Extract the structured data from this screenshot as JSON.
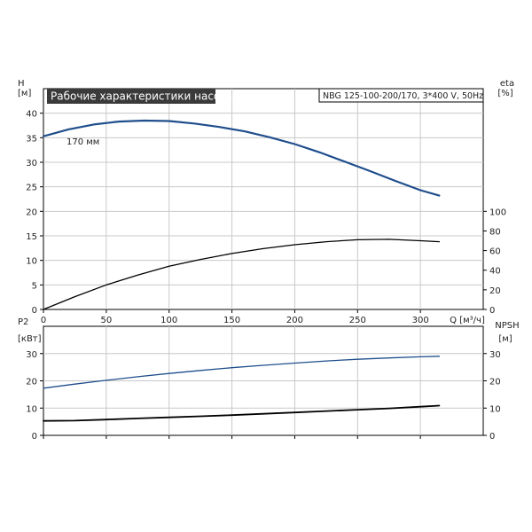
{
  "chart_data": [
    {
      "type": "line",
      "title": "Рабочие характеристики насоса",
      "subtitle": "NBG 125-100-200/170, 3*400 V, 50Hz",
      "x_axis": {
        "label": "Q [м³/ч]",
        "range": [
          0,
          350
        ],
        "ticks": [
          0,
          50,
          100,
          150,
          200,
          250,
          300
        ]
      },
      "y_left_axis": {
        "label": "H",
        "unit": "[м]",
        "range": [
          0,
          45
        ],
        "ticks": [
          0,
          5,
          10,
          15,
          20,
          25,
          30,
          35,
          40
        ]
      },
      "y_right_axis": {
        "label": "eta",
        "unit": "[%]",
        "range": [
          0,
          225
        ],
        "ticks": [
          0,
          20,
          40,
          60,
          80,
          100
        ]
      },
      "grid": true,
      "series": [
        {
          "name": "170 мм",
          "axis": "left",
          "color": "#1f4e8c",
          "x": [
            0,
            20,
            40,
            60,
            80,
            100,
            120,
            140,
            160,
            180,
            200,
            220,
            240,
            260,
            280,
            300,
            315
          ],
          "values": [
            35.3,
            36.7,
            37.7,
            38.3,
            38.5,
            38.4,
            37.9,
            37.2,
            36.3,
            35.1,
            33.7,
            32.0,
            30.1,
            28.2,
            26.2,
            24.3,
            23.2
          ]
        },
        {
          "name": "eta",
          "axis": "right",
          "color": "#000000",
          "x": [
            0,
            25,
            50,
            75,
            100,
            125,
            150,
            175,
            200,
            225,
            250,
            275,
            300,
            315
          ],
          "values": [
            0,
            13,
            25,
            35,
            44,
            51,
            57,
            62,
            66,
            69,
            71,
            71.5,
            70,
            69
          ]
        }
      ]
    },
    {
      "type": "line",
      "x_axis": {
        "range": [
          0,
          350
        ],
        "ticks": [
          0,
          50,
          100,
          150,
          200,
          250,
          300
        ]
      },
      "y_left_axis": {
        "label": "P2",
        "unit": "[кВт]",
        "range": [
          0,
          40
        ],
        "ticks": [
          0,
          10,
          20,
          30
        ]
      },
      "y_right_axis": {
        "label": "NPSH",
        "unit": "[м]",
        "range": [
          0,
          40
        ],
        "ticks": [
          0,
          10,
          20,
          30
        ]
      },
      "grid": true,
      "series": [
        {
          "name": "P2",
          "axis": "left",
          "color": "#1f4e8c",
          "x": [
            0,
            25,
            50,
            75,
            100,
            125,
            150,
            175,
            200,
            225,
            250,
            275,
            300,
            315
          ],
          "values": [
            17.3,
            18.8,
            20.2,
            21.5,
            22.7,
            23.8,
            24.8,
            25.7,
            26.5,
            27.3,
            27.9,
            28.4,
            28.8,
            29.0
          ]
        },
        {
          "name": "NPSH",
          "axis": "right",
          "color": "#000000",
          "x": [
            0,
            25,
            50,
            75,
            100,
            125,
            150,
            175,
            200,
            225,
            250,
            275,
            300,
            315
          ],
          "values": [
            5.3,
            5.4,
            5.8,
            6.2,
            6.6,
            7.0,
            7.4,
            7.9,
            8.4,
            8.9,
            9.4,
            9.9,
            10.5,
            10.9
          ]
        }
      ]
    }
  ]
}
